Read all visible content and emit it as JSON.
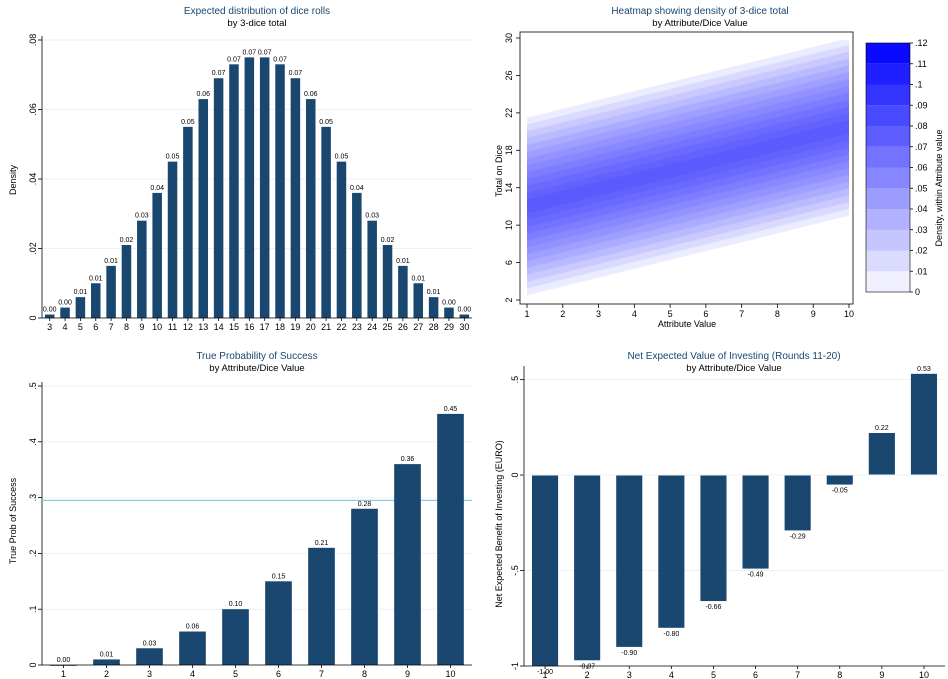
{
  "colors": {
    "bar": "#1a476f",
    "title": "#1a476f",
    "grid": "#eaf2f3",
    "refline": "#8ecae6",
    "heat": "#0000ff"
  },
  "chart_data": [
    {
      "id": "dice",
      "type": "bar",
      "title": "Expected distribution of dice rolls",
      "subtitle": "by 3-dice total",
      "xlabel": "",
      "ylabel": "Density",
      "ylim": [
        0,
        0.08
      ],
      "yticks": [
        0,
        0.02,
        0.04,
        0.06,
        0.08
      ],
      "ytick_labels": [
        "0",
        ".02",
        ".04",
        ".06",
        ".08"
      ],
      "categories": [
        "3",
        "4",
        "5",
        "6",
        "7",
        "8",
        "9",
        "10",
        "11",
        "12",
        "13",
        "14",
        "15",
        "16",
        "17",
        "18",
        "19",
        "20",
        "21",
        "22",
        "23",
        "24",
        "25",
        "26",
        "27",
        "28",
        "29",
        "30"
      ],
      "values": [
        0.001,
        0.003,
        0.006,
        0.01,
        0.015,
        0.021,
        0.028,
        0.036,
        0.045,
        0.055,
        0.063,
        0.069,
        0.073,
        0.075,
        0.075,
        0.073,
        0.069,
        0.063,
        0.055,
        0.045,
        0.036,
        0.028,
        0.021,
        0.015,
        0.01,
        0.006,
        0.003,
        0.001
      ],
      "data_labels": [
        "0.00",
        "0.00",
        "0.01",
        "0.01",
        "0.01",
        "0.02",
        "0.03",
        "0.04",
        "0.05",
        "0.05",
        "0.06",
        "0.07",
        "0.07",
        "0.07",
        "0.07",
        "0.07",
        "0.07",
        "0.06",
        "0.05",
        "0.05",
        "0.04",
        "0.03",
        "0.02",
        "0.01",
        "0.01",
        "0.01",
        "0.00",
        "0.00"
      ],
      "grid": true
    },
    {
      "id": "heat",
      "type": "heatmap",
      "title": "Heatmap showing density of 3-dice total",
      "subtitle": "by Attribute/Dice Value",
      "xlabel": "Attribute Value",
      "ylabel": "Total on Dice",
      "xlim": [
        1,
        10
      ],
      "ylim": [
        2,
        30
      ],
      "xticks": [
        1,
        2,
        3,
        4,
        5,
        6,
        7,
        8,
        9,
        10
      ],
      "yticks": [
        2,
        6,
        10,
        14,
        18,
        22,
        26,
        30
      ],
      "center_total_at_x1": 12,
      "center_total_at_x10": 20.5,
      "half_width": 9.5,
      "colorbar": {
        "label": "Density, within Attribute value",
        "levels": [
          0,
          0.01,
          0.02,
          0.03,
          0.04,
          0.05,
          0.06,
          0.07,
          0.08,
          0.09,
          0.1,
          0.11,
          0.12
        ],
        "tick_labels": [
          "0",
          ".01",
          ".02",
          ".03",
          ".04",
          ".05",
          ".06",
          ".07",
          ".08",
          ".09",
          ".1",
          ".11",
          ".12"
        ]
      }
    },
    {
      "id": "prob",
      "type": "bar",
      "title": "True Probability of Success",
      "subtitle": "by Attribute/Dice Value",
      "xlabel": "",
      "ylabel": "True Prob of Success",
      "ylim": [
        0,
        0.5
      ],
      "yticks": [
        0,
        0.1,
        0.2,
        0.3,
        0.4,
        0.5
      ],
      "ytick_labels": [
        "0",
        ".1",
        ".2",
        ".3",
        ".4",
        ".5"
      ],
      "categories": [
        "1",
        "2",
        "3",
        "4",
        "5",
        "6",
        "7",
        "8",
        "9",
        "10"
      ],
      "values": [
        0.0,
        0.01,
        0.03,
        0.06,
        0.1,
        0.15,
        0.21,
        0.28,
        0.36,
        0.45
      ],
      "data_labels": [
        "0.00",
        "0.01",
        "0.03",
        "0.06",
        "0.10",
        "0.15",
        "0.21",
        "0.28",
        "0.36",
        "0.45"
      ],
      "reference_line": 0.295,
      "grid": true
    },
    {
      "id": "nev",
      "type": "bar",
      "title": "Net Expected Value of Investing (Rounds 11-20)",
      "subtitle": "by Attribute/Dice Value",
      "xlabel": "",
      "ylabel": "Net Expected Benefit of Investing (EURO)",
      "ylim": [
        -1.0,
        0.55
      ],
      "yticks": [
        -1,
        -0.5,
        0,
        0.5
      ],
      "ytick_labels": [
        "-1",
        "-.5",
        "0",
        ".5"
      ],
      "categories": [
        "1",
        "2",
        "3",
        "4",
        "5",
        "6",
        "7",
        "8",
        "9",
        "10"
      ],
      "values": [
        -1.0,
        -0.97,
        -0.9,
        -0.8,
        -0.66,
        -0.49,
        -0.29,
        -0.05,
        0.22,
        0.53
      ],
      "data_labels": [
        "-1.00",
        "-0.97",
        "-0.90",
        "-0.80",
        "-0.66",
        "-0.49",
        "-0.29",
        "-0.05",
        "0.22",
        "0.53"
      ],
      "grid": true
    }
  ]
}
